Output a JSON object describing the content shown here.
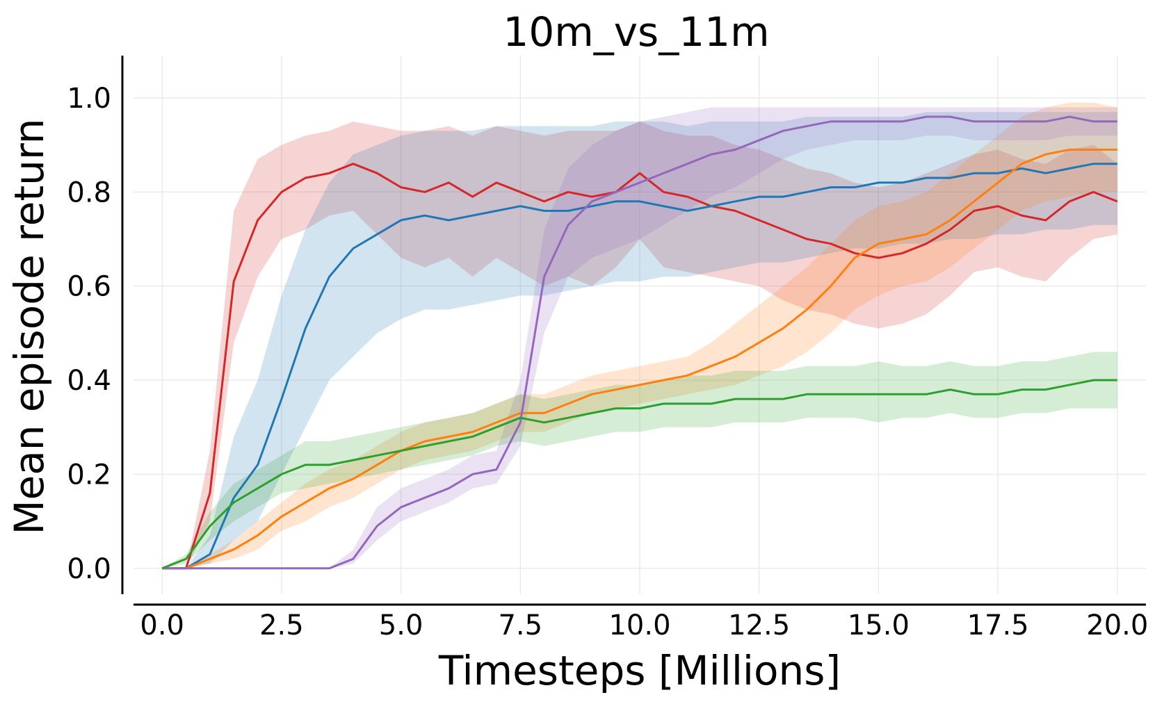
{
  "chart_data": {
    "type": "line",
    "title": "10m_vs_11m",
    "xlabel": "Timesteps [Millions]",
    "ylabel": "Mean episode return",
    "xlim": [
      -0.6,
      20.6
    ],
    "ylim": [
      -0.055,
      1.09
    ],
    "xticks": [
      0.0,
      2.5,
      5.0,
      7.5,
      10.0,
      12.5,
      15.0,
      17.5,
      20.0
    ],
    "xtick_labels": [
      "0.0",
      "2.5",
      "5.0",
      "7.5",
      "10.0",
      "12.5",
      "15.0",
      "17.5",
      "20.0"
    ],
    "yticks": [
      0.0,
      0.2,
      0.4,
      0.6,
      0.8,
      1.0
    ],
    "ytick_labels": [
      "0.0",
      "0.2",
      "0.4",
      "0.6",
      "0.8",
      "1.0"
    ],
    "grid": true,
    "legend": "none",
    "x": [
      0,
      0.5,
      1,
      1.5,
      2,
      2.5,
      3,
      3.5,
      4,
      4.5,
      5,
      5.5,
      6,
      6.5,
      7,
      7.5,
      8,
      8.5,
      9,
      9.5,
      10,
      10.5,
      11,
      11.5,
      12,
      12.5,
      13,
      13.5,
      14,
      14.5,
      15,
      15.5,
      16,
      16.5,
      17,
      17.5,
      18,
      18.5,
      19,
      19.5,
      20
    ],
    "series": [
      {
        "color": "#d62728",
        "values": [
          0,
          0,
          0.16,
          0.61,
          0.74,
          0.8,
          0.83,
          0.84,
          0.86,
          0.84,
          0.81,
          0.8,
          0.82,
          0.79,
          0.82,
          0.8,
          0.78,
          0.8,
          0.79,
          0.8,
          0.84,
          0.8,
          0.79,
          0.77,
          0.76,
          0.74,
          0.72,
          0.7,
          0.69,
          0.67,
          0.66,
          0.67,
          0.69,
          0.72,
          0.76,
          0.77,
          0.75,
          0.74,
          0.78,
          0.8,
          0.78
        ],
        "lower": [
          0,
          0,
          0.1,
          0.48,
          0.62,
          0.7,
          0.72,
          0.75,
          0.76,
          0.71,
          0.66,
          0.64,
          0.66,
          0.62,
          0.66,
          0.63,
          0.6,
          0.62,
          0.6,
          0.64,
          0.7,
          0.64,
          0.63,
          0.62,
          0.61,
          0.6,
          0.57,
          0.55,
          0.54,
          0.52,
          0.51,
          0.52,
          0.54,
          0.58,
          0.63,
          0.64,
          0.62,
          0.61,
          0.66,
          0.7,
          0.71
        ],
        "upper": [
          0,
          0,
          0.25,
          0.76,
          0.87,
          0.9,
          0.92,
          0.93,
          0.95,
          0.94,
          0.93,
          0.93,
          0.94,
          0.92,
          0.94,
          0.93,
          0.92,
          0.93,
          0.93,
          0.93,
          0.95,
          0.93,
          0.92,
          0.92,
          0.9,
          0.89,
          0.87,
          0.85,
          0.84,
          0.82,
          0.81,
          0.82,
          0.84,
          0.86,
          0.88,
          0.89,
          0.87,
          0.86,
          0.89,
          0.9,
          0.86
        ]
      },
      {
        "color": "#1f77b4",
        "values": [
          0,
          0,
          0.03,
          0.15,
          0.22,
          0.36,
          0.51,
          0.62,
          0.68,
          0.71,
          0.74,
          0.75,
          0.74,
          0.75,
          0.76,
          0.77,
          0.76,
          0.76,
          0.77,
          0.78,
          0.78,
          0.77,
          0.76,
          0.77,
          0.78,
          0.79,
          0.79,
          0.8,
          0.81,
          0.81,
          0.82,
          0.82,
          0.83,
          0.83,
          0.84,
          0.84,
          0.85,
          0.84,
          0.85,
          0.86,
          0.86
        ],
        "lower": [
          0,
          0,
          0.01,
          0.06,
          0.1,
          0.2,
          0.3,
          0.4,
          0.45,
          0.5,
          0.53,
          0.55,
          0.55,
          0.56,
          0.57,
          0.58,
          0.58,
          0.59,
          0.6,
          0.61,
          0.61,
          0.62,
          0.62,
          0.63,
          0.64,
          0.65,
          0.65,
          0.66,
          0.67,
          0.68,
          0.68,
          0.69,
          0.69,
          0.7,
          0.7,
          0.71,
          0.71,
          0.72,
          0.72,
          0.73,
          0.73
        ],
        "upper": [
          0,
          0,
          0.07,
          0.28,
          0.4,
          0.58,
          0.72,
          0.82,
          0.88,
          0.9,
          0.92,
          0.93,
          0.93,
          0.93,
          0.94,
          0.94,
          0.94,
          0.94,
          0.94,
          0.95,
          0.95,
          0.95,
          0.94,
          0.95,
          0.95,
          0.95,
          0.95,
          0.96,
          0.96,
          0.96,
          0.96,
          0.96,
          0.97,
          0.97,
          0.97,
          0.97,
          0.97,
          0.97,
          0.97,
          0.97,
          0.97
        ]
      },
      {
        "color": "#ff7f0e",
        "values": [
          0,
          0,
          0.02,
          0.04,
          0.07,
          0.11,
          0.14,
          0.17,
          0.19,
          0.22,
          0.25,
          0.27,
          0.28,
          0.29,
          0.31,
          0.33,
          0.33,
          0.35,
          0.37,
          0.38,
          0.39,
          0.4,
          0.41,
          0.43,
          0.45,
          0.48,
          0.51,
          0.55,
          0.6,
          0.66,
          0.69,
          0.7,
          0.71,
          0.74,
          0.78,
          0.82,
          0.86,
          0.88,
          0.89,
          0.89,
          0.89
        ],
        "lower": [
          0,
          0,
          0.01,
          0.02,
          0.04,
          0.08,
          0.1,
          0.13,
          0.15,
          0.18,
          0.21,
          0.23,
          0.24,
          0.25,
          0.27,
          0.29,
          0.29,
          0.31,
          0.33,
          0.34,
          0.35,
          0.36,
          0.37,
          0.38,
          0.39,
          0.41,
          0.43,
          0.46,
          0.5,
          0.55,
          0.58,
          0.6,
          0.61,
          0.64,
          0.68,
          0.72,
          0.76,
          0.78,
          0.79,
          0.8,
          0.8
        ],
        "upper": [
          0,
          0,
          0.03,
          0.06,
          0.1,
          0.14,
          0.18,
          0.21,
          0.23,
          0.26,
          0.29,
          0.31,
          0.32,
          0.33,
          0.35,
          0.37,
          0.37,
          0.39,
          0.41,
          0.42,
          0.43,
          0.44,
          0.45,
          0.48,
          0.52,
          0.56,
          0.6,
          0.64,
          0.69,
          0.74,
          0.77,
          0.78,
          0.8,
          0.84,
          0.88,
          0.92,
          0.96,
          0.98,
          0.99,
          0.99,
          0.98
        ]
      },
      {
        "color": "#9467bd",
        "values": [
          0,
          0,
          0,
          0,
          0,
          0,
          0,
          0,
          0.02,
          0.09,
          0.13,
          0.15,
          0.17,
          0.2,
          0.21,
          0.31,
          0.62,
          0.73,
          0.78,
          0.8,
          0.82,
          0.84,
          0.86,
          0.88,
          0.89,
          0.91,
          0.93,
          0.94,
          0.95,
          0.95,
          0.95,
          0.95,
          0.96,
          0.96,
          0.95,
          0.95,
          0.95,
          0.95,
          0.96,
          0.95,
          0.95
        ],
        "lower": [
          0,
          0,
          0,
          0,
          0,
          0,
          0,
          0,
          0.01,
          0.06,
          0.1,
          0.12,
          0.14,
          0.17,
          0.18,
          0.26,
          0.5,
          0.62,
          0.66,
          0.68,
          0.7,
          0.73,
          0.76,
          0.79,
          0.81,
          0.84,
          0.87,
          0.89,
          0.9,
          0.91,
          0.91,
          0.91,
          0.92,
          0.92,
          0.91,
          0.91,
          0.91,
          0.91,
          0.92,
          0.92,
          0.92
        ],
        "upper": [
          0,
          0,
          0,
          0,
          0,
          0,
          0,
          0,
          0.04,
          0.13,
          0.17,
          0.19,
          0.21,
          0.24,
          0.25,
          0.4,
          0.72,
          0.85,
          0.9,
          0.93,
          0.95,
          0.96,
          0.97,
          0.98,
          0.98,
          0.98,
          0.98,
          0.98,
          0.98,
          0.98,
          0.98,
          0.98,
          0.98,
          0.98,
          0.98,
          0.98,
          0.98,
          0.98,
          0.98,
          0.98,
          0.98
        ]
      },
      {
        "color": "#2ca02c",
        "values": [
          0,
          0.02,
          0.09,
          0.14,
          0.17,
          0.2,
          0.22,
          0.22,
          0.23,
          0.24,
          0.25,
          0.26,
          0.27,
          0.28,
          0.3,
          0.32,
          0.31,
          0.32,
          0.33,
          0.34,
          0.34,
          0.35,
          0.35,
          0.35,
          0.36,
          0.36,
          0.36,
          0.37,
          0.37,
          0.37,
          0.37,
          0.37,
          0.37,
          0.38,
          0.37,
          0.37,
          0.38,
          0.38,
          0.39,
          0.4,
          0.4
        ],
        "lower": [
          0,
          0.01,
          0.06,
          0.1,
          0.13,
          0.16,
          0.17,
          0.18,
          0.19,
          0.2,
          0.21,
          0.22,
          0.23,
          0.24,
          0.26,
          0.27,
          0.26,
          0.27,
          0.28,
          0.29,
          0.29,
          0.3,
          0.3,
          0.3,
          0.31,
          0.31,
          0.31,
          0.32,
          0.32,
          0.32,
          0.31,
          0.32,
          0.32,
          0.33,
          0.32,
          0.32,
          0.33,
          0.33,
          0.34,
          0.34,
          0.34
        ],
        "upper": [
          0,
          0.03,
          0.12,
          0.18,
          0.21,
          0.24,
          0.27,
          0.27,
          0.28,
          0.29,
          0.3,
          0.31,
          0.32,
          0.33,
          0.35,
          0.37,
          0.36,
          0.37,
          0.38,
          0.39,
          0.39,
          0.4,
          0.41,
          0.41,
          0.42,
          0.42,
          0.42,
          0.43,
          0.43,
          0.43,
          0.44,
          0.43,
          0.43,
          0.44,
          0.43,
          0.43,
          0.44,
          0.44,
          0.45,
          0.46,
          0.46
        ]
      }
    ]
  }
}
